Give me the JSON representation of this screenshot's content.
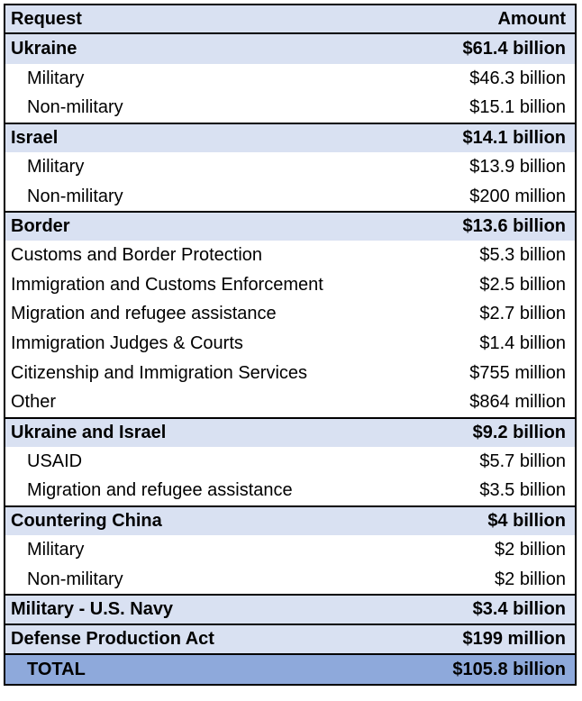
{
  "header": {
    "request": "Request",
    "amount": "Amount"
  },
  "groups": [
    {
      "label": "Ukraine",
      "amount": "$61.4 billion",
      "items": [
        {
          "label": "Military",
          "amount": "$46.3 billion"
        },
        {
          "label": "Non-military",
          "amount": "$15.1 billion"
        }
      ]
    },
    {
      "label": "Israel",
      "amount": "$14.1 billion",
      "items": [
        {
          "label": "Military",
          "amount": "$13.9 billion"
        },
        {
          "label": "Non-military",
          "amount": "$200 million"
        }
      ]
    },
    {
      "label": "Border",
      "amount": "$13.6 billion",
      "items": [
        {
          "label": "Customs and Border Protection",
          "amount": "$5.3 billion"
        },
        {
          "label": "Immigration and Customs Enforcement",
          "amount": "$2.5 billion"
        },
        {
          "label": "Migration and refugee assistance",
          "amount": "$2.7 billion"
        },
        {
          "label": "Immigration Judges & Courts",
          "amount": "$1.4 billion"
        },
        {
          "label": "Citizenship and Immigration Services",
          "amount": "$755 million"
        },
        {
          "label": "Other",
          "amount": "$864 million"
        }
      ]
    },
    {
      "label": "Ukraine and Israel",
      "amount": "$9.2 billion",
      "items": [
        {
          "label": "USAID",
          "amount": "$5.7 billion"
        },
        {
          "label": "Migration and refugee assistance",
          "amount": "$3.5 billion"
        }
      ]
    },
    {
      "label": "Countering China",
      "amount": "$4 billion",
      "items": [
        {
          "label": "Military",
          "amount": "$2 billion"
        },
        {
          "label": "Non-military",
          "amount": "$2 billion"
        }
      ]
    },
    {
      "label": "Military - U.S. Navy",
      "amount": "$3.4 billion",
      "items": []
    },
    {
      "label": "Defense Production Act",
      "amount": "$199 million",
      "items": []
    }
  ],
  "total": {
    "label": "TOTAL",
    "amount": "$105.8 billion"
  }
}
